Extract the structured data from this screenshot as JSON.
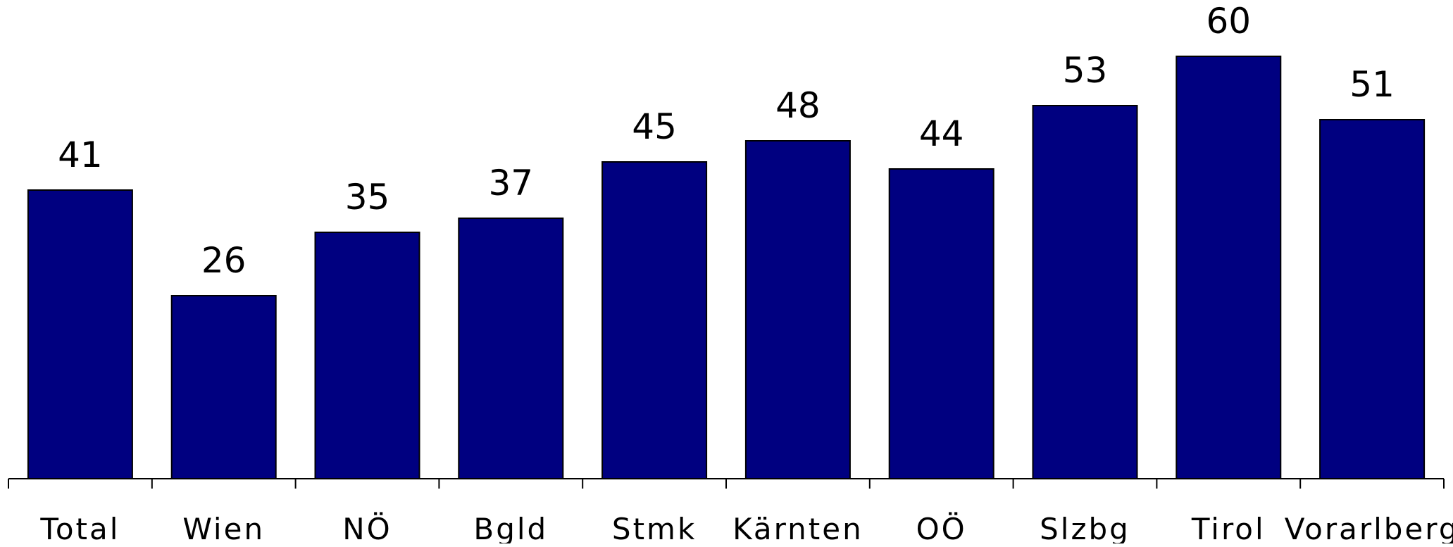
{
  "chart_data": {
    "type": "bar",
    "categories": [
      "Total",
      "Wien",
      "NÖ",
      "Bgld",
      "Stmk",
      "Kärnten",
      "OÖ",
      "Slzbg",
      "Tirol",
      "Vorarlberg"
    ],
    "values": [
      41,
      26,
      35,
      37,
      45,
      48,
      44,
      53,
      60,
      51
    ],
    "title": "",
    "xlabel": "",
    "ylabel": "",
    "ylim": [
      0,
      60
    ],
    "grid": false,
    "legend": "none",
    "data_labels": true,
    "bar_color": "#000080",
    "bar_edge_color": "#000000"
  }
}
